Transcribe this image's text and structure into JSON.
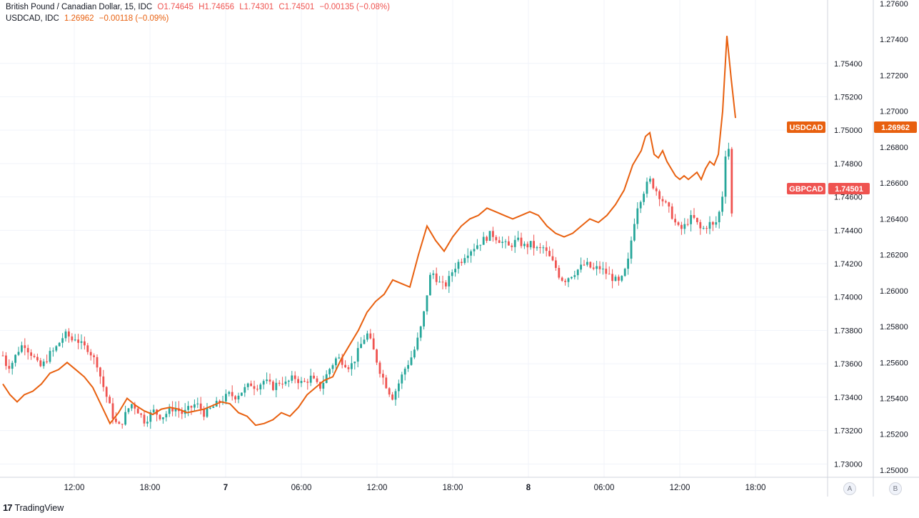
{
  "legend_gbp": {
    "symbol": "British Pound / Canadian Dollar, 15, IDC",
    "open": "O1.74645",
    "high": "H1.74656",
    "low": "L1.74301",
    "close": "C1.74501",
    "change": "−0.00135 (−0.08%)"
  },
  "legend_usd": {
    "symbol": "USDCAD, IDC",
    "last": "1.26962",
    "change": "−0.00118 (−0.09%)"
  },
  "badges": {
    "usd_name": "USDCAD",
    "usd_value": "1.26962",
    "gbp_name": "GBPCAD",
    "gbp_value": "1.74501"
  },
  "scale_buttons": {
    "a": "A",
    "b": "B"
  },
  "footer": {
    "logo": "TradingView"
  },
  "colors": {
    "up": "#26a69a",
    "down": "#ef5350",
    "usd_line": "#e8600f",
    "badge_usd": "#e8600f",
    "badge_gbp": "#ef5350",
    "grid": "#f0f3fa"
  },
  "chart_data": {
    "type": "line",
    "x_ticks": [
      "12:00",
      "18:00",
      "7",
      "06:00",
      "12:00",
      "18:00",
      "8",
      "06:00",
      "12:00",
      "18:00"
    ],
    "right_axis_ticks": [
      "1.75400",
      "1.75200",
      "1.75000",
      "1.74800",
      "1.74600",
      "1.74400",
      "1.74200",
      "1.74000",
      "1.73800",
      "1.73600",
      "1.73400",
      "1.73200",
      "1.73000"
    ],
    "right_axis_range": [
      1.7292,
      1.7578
    ],
    "far_right_axis_ticks": [
      "1.27600",
      "1.27400",
      "1.27200",
      "1.27000",
      "1.26800",
      "1.26600",
      "1.26400",
      "1.26200",
      "1.26000",
      "1.25800",
      "1.25600",
      "1.25400",
      "1.25200",
      "1.25000"
    ],
    "far_right_axis_range": [
      1.2496,
      1.2762
    ],
    "series": [
      {
        "name": "GBPCAD",
        "style": "candlestick",
        "axis": "right",
        "close_path": [
          [
            0,
            1.7365
          ],
          [
            6,
            1.7358
          ],
          [
            12,
            1.736
          ],
          [
            18,
            1.7365
          ],
          [
            24,
            1.737
          ],
          [
            30,
            1.7372
          ],
          [
            36,
            1.7368
          ],
          [
            42,
            1.7365
          ],
          [
            48,
            1.736
          ],
          [
            54,
            1.7358
          ],
          [
            60,
            1.7362
          ],
          [
            66,
            1.7366
          ],
          [
            72,
            1.7368
          ],
          [
            78,
            1.7372
          ],
          [
            84,
            1.7376
          ],
          [
            90,
            1.7378
          ],
          [
            96,
            1.7374
          ],
          [
            102,
            1.7376
          ],
          [
            108,
            1.7372
          ],
          [
            114,
            1.737
          ],
          [
            120,
            1.7369
          ],
          [
            126,
            1.7364
          ],
          [
            132,
            1.736
          ],
          [
            138,
            1.735
          ],
          [
            144,
            1.7342
          ],
          [
            150,
            1.7334
          ],
          [
            156,
            1.7326
          ],
          [
            162,
            1.7322
          ],
          [
            168,
            1.7326
          ],
          [
            174,
            1.7332
          ],
          [
            180,
            1.7336
          ],
          [
            186,
            1.7334
          ],
          [
            192,
            1.733
          ],
          [
            198,
            1.7326
          ],
          [
            204,
            1.7328
          ],
          [
            210,
            1.7332
          ],
          [
            216,
            1.733
          ],
          [
            222,
            1.7328
          ],
          [
            228,
            1.733
          ],
          [
            234,
            1.7332
          ],
          [
            240,
            1.7334
          ],
          [
            246,
            1.7332
          ],
          [
            252,
            1.733
          ],
          [
            258,
            1.7332
          ],
          [
            264,
            1.7334
          ],
          [
            270,
            1.7336
          ],
          [
            276,
            1.7334
          ],
          [
            282,
            1.733
          ],
          [
            288,
            1.7332
          ],
          [
            294,
            1.7334
          ],
          [
            300,
            1.7336
          ],
          [
            306,
            1.7338
          ],
          [
            312,
            1.734
          ],
          [
            318,
            1.7342
          ],
          [
            324,
            1.734
          ],
          [
            330,
            1.7342
          ],
          [
            336,
            1.7344
          ],
          [
            342,
            1.7346
          ],
          [
            348,
            1.7348
          ],
          [
            354,
            1.7346
          ],
          [
            360,
            1.7348
          ],
          [
            366,
            1.735
          ],
          [
            372,
            1.7348
          ],
          [
            378,
            1.7346
          ],
          [
            384,
            1.7348
          ],
          [
            390,
            1.735
          ],
          [
            396,
            1.7348
          ],
          [
            402,
            1.735
          ],
          [
            408,
            1.7352
          ],
          [
            414,
            1.735
          ],
          [
            420,
            1.7348
          ],
          [
            426,
            1.735
          ],
          [
            432,
            1.7352
          ],
          [
            438,
            1.7348
          ],
          [
            444,
            1.7346
          ],
          [
            450,
            1.735
          ],
          [
            456,
            1.7356
          ],
          [
            462,
            1.736
          ],
          [
            468,
            1.7364
          ],
          [
            474,
            1.7362
          ],
          [
            480,
            1.736
          ],
          [
            486,
            1.7358
          ],
          [
            492,
            1.7362
          ],
          [
            498,
            1.7368
          ],
          [
            504,
            1.7374
          ],
          [
            510,
            1.7378
          ],
          [
            516,
            1.7372
          ],
          [
            522,
            1.7364
          ],
          [
            528,
            1.7356
          ],
          [
            534,
            1.735
          ],
          [
            540,
            1.7344
          ],
          [
            546,
            1.734
          ],
          [
            552,
            1.7346
          ],
          [
            558,
            1.7352
          ],
          [
            564,
            1.7358
          ],
          [
            570,
            1.7362
          ],
          [
            576,
            1.7368
          ],
          [
            582,
            1.7376
          ],
          [
            588,
            1.7386
          ],
          [
            594,
            1.7402
          ],
          [
            600,
            1.7416
          ],
          [
            606,
            1.7412
          ],
          [
            612,
            1.7408
          ],
          [
            618,
            1.7406
          ],
          [
            624,
            1.741
          ],
          [
            630,
            1.7416
          ],
          [
            636,
            1.742
          ],
          [
            642,
            1.7422
          ],
          [
            648,
            1.7426
          ],
          [
            654,
            1.7428
          ],
          [
            660,
            1.743
          ],
          [
            666,
            1.7432
          ],
          [
            672,
            1.7434
          ],
          [
            678,
            1.7436
          ],
          [
            684,
            1.7438
          ],
          [
            690,
            1.7436
          ],
          [
            696,
            1.7434
          ],
          [
            702,
            1.7432
          ],
          [
            708,
            1.743
          ],
          [
            714,
            1.7432
          ],
          [
            720,
            1.7434
          ],
          [
            726,
            1.7432
          ],
          [
            732,
            1.743
          ],
          [
            738,
            1.7432
          ],
          [
            744,
            1.743
          ],
          [
            750,
            1.7428
          ],
          [
            756,
            1.743
          ],
          [
            762,
            1.7426
          ],
          [
            768,
            1.7422
          ],
          [
            774,
            1.7418
          ],
          [
            780,
            1.7412
          ],
          [
            786,
            1.741
          ],
          [
            792,
            1.7412
          ],
          [
            798,
            1.7414
          ],
          [
            804,
            1.7416
          ],
          [
            810,
            1.7418
          ],
          [
            816,
            1.742
          ],
          [
            822,
            1.7418
          ],
          [
            828,
            1.7416
          ],
          [
            834,
            1.7418
          ],
          [
            840,
            1.7416
          ],
          [
            846,
            1.7414
          ],
          [
            852,
            1.7412
          ],
          [
            858,
            1.741
          ],
          [
            864,
            1.7408
          ],
          [
            870,
            1.7414
          ],
          [
            876,
            1.7422
          ],
          [
            882,
            1.744
          ],
          [
            888,
            1.7454
          ],
          [
            894,
            1.746
          ],
          [
            900,
            1.7466
          ],
          [
            906,
            1.747
          ],
          [
            912,
            1.7466
          ],
          [
            918,
            1.7462
          ],
          [
            924,
            1.7458
          ],
          [
            930,
            1.7454
          ],
          [
            936,
            1.745
          ],
          [
            942,
            1.7444
          ],
          [
            948,
            1.744
          ],
          [
            954,
            1.7442
          ],
          [
            960,
            1.7446
          ],
          [
            966,
            1.7448
          ],
          [
            972,
            1.7444
          ],
          [
            978,
            1.744
          ],
          [
            984,
            1.7442
          ],
          [
            990,
            1.7444
          ],
          [
            996,
            1.7442
          ],
          [
            1002,
            1.7448
          ],
          [
            1008,
            1.7462
          ],
          [
            1014,
            1.7498
          ],
          [
            1020,
            1.7476
          ],
          [
            1026,
            1.7464
          ],
          [
            1029,
            1.74501
          ]
        ]
      },
      {
        "name": "USDCAD",
        "style": "line",
        "axis": "far_right",
        "points": [
          [
            0,
            1.2548
          ],
          [
            10,
            1.2542
          ],
          [
            20,
            1.2538
          ],
          [
            30,
            1.2542
          ],
          [
            42,
            1.2544
          ],
          [
            54,
            1.2548
          ],
          [
            66,
            1.2554
          ],
          [
            78,
            1.2556
          ],
          [
            90,
            1.256
          ],
          [
            102,
            1.2556
          ],
          [
            114,
            1.2552
          ],
          [
            126,
            1.2546
          ],
          [
            138,
            1.2536
          ],
          [
            150,
            1.2526
          ],
          [
            162,
            1.2532
          ],
          [
            174,
            1.254
          ],
          [
            186,
            1.2536
          ],
          [
            198,
            1.2533
          ],
          [
            210,
            1.2531
          ],
          [
            222,
            1.2534
          ],
          [
            234,
            1.2535
          ],
          [
            246,
            1.2534
          ],
          [
            258,
            1.2532
          ],
          [
            270,
            1.2533
          ],
          [
            282,
            1.2534
          ],
          [
            294,
            1.2536
          ],
          [
            306,
            1.2538
          ],
          [
            318,
            1.2537
          ],
          [
            330,
            1.2532
          ],
          [
            342,
            1.253
          ],
          [
            354,
            1.2525
          ],
          [
            366,
            1.2526
          ],
          [
            378,
            1.2528
          ],
          [
            390,
            1.2532
          ],
          [
            402,
            1.253
          ],
          [
            414,
            1.2535
          ],
          [
            426,
            1.2542
          ],
          [
            438,
            1.2546
          ],
          [
            450,
            1.255
          ],
          [
            462,
            1.2552
          ],
          [
            474,
            1.2562
          ],
          [
            486,
            1.257
          ],
          [
            498,
            1.2578
          ],
          [
            510,
            1.2588
          ],
          [
            522,
            1.2594
          ],
          [
            534,
            1.2598
          ],
          [
            546,
            1.2606
          ],
          [
            558,
            1.2604
          ],
          [
            570,
            1.2602
          ],
          [
            582,
            1.262
          ],
          [
            594,
            1.2636
          ],
          [
            606,
            1.2628
          ],
          [
            618,
            1.2622
          ],
          [
            630,
            1.263
          ],
          [
            642,
            1.2636
          ],
          [
            654,
            1.264
          ],
          [
            666,
            1.2642
          ],
          [
            678,
            1.2646
          ],
          [
            690,
            1.2644
          ],
          [
            702,
            1.2642
          ],
          [
            714,
            1.264
          ],
          [
            726,
            1.2642
          ],
          [
            738,
            1.2644
          ],
          [
            750,
            1.2642
          ],
          [
            762,
            1.2636
          ],
          [
            774,
            1.2632
          ],
          [
            786,
            1.263
          ],
          [
            798,
            1.2632
          ],
          [
            810,
            1.2636
          ],
          [
            822,
            1.264
          ],
          [
            834,
            1.2638
          ],
          [
            846,
            1.2642
          ],
          [
            858,
            1.2648
          ],
          [
            870,
            1.2656
          ],
          [
            882,
            1.267
          ],
          [
            894,
            1.2678
          ],
          [
            900,
            1.2686
          ],
          [
            906,
            1.2688
          ],
          [
            912,
            1.2676
          ],
          [
            918,
            1.2674
          ],
          [
            924,
            1.2678
          ],
          [
            930,
            1.2672
          ],
          [
            936,
            1.2668
          ],
          [
            942,
            1.2664
          ],
          [
            948,
            1.2662
          ],
          [
            954,
            1.2664
          ],
          [
            960,
            1.2662
          ],
          [
            966,
            1.2664
          ],
          [
            972,
            1.2666
          ],
          [
            978,
            1.2662
          ],
          [
            984,
            1.2668
          ],
          [
            990,
            1.2672
          ],
          [
            996,
            1.267
          ],
          [
            1002,
            1.2676
          ],
          [
            1008,
            1.27
          ],
          [
            1014,
            1.2742
          ],
          [
            1020,
            1.2718
          ],
          [
            1026,
            1.26962
          ]
        ]
      }
    ]
  }
}
